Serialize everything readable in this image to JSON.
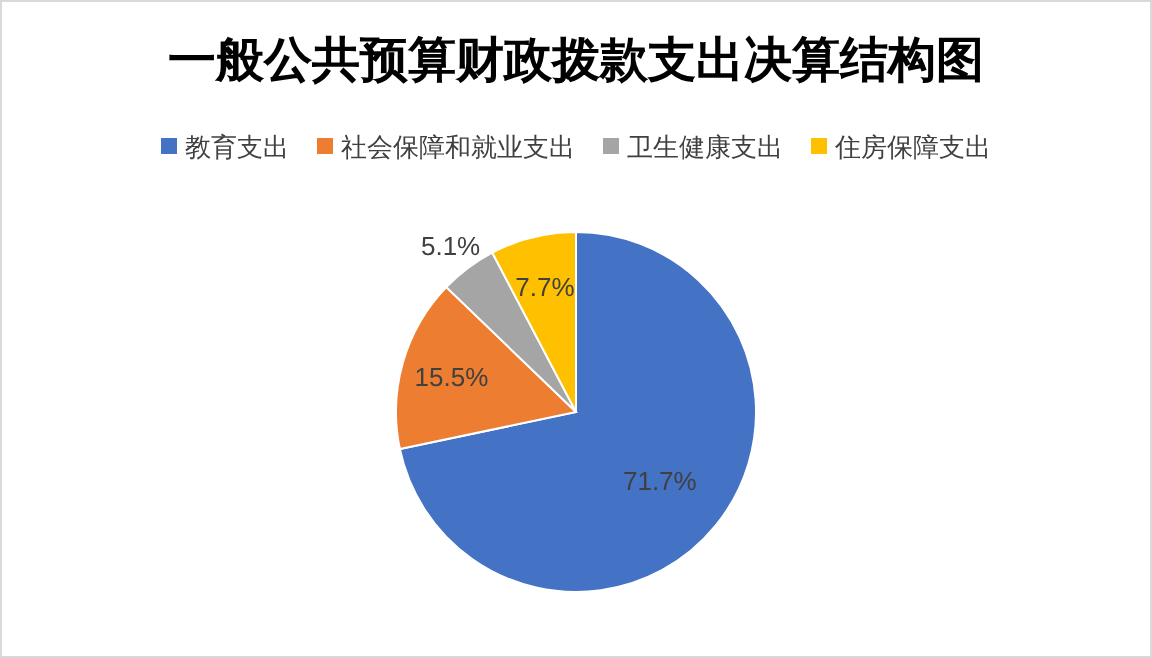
{
  "chart_data": {
    "type": "pie",
    "title": "一般公共预算财政拨款支出决算结构图",
    "categories": [
      "教育支出",
      "社会保障和就业支出",
      "卫生健康支出",
      "住房保障支出"
    ],
    "values": [
      71.7,
      15.5,
      5.1,
      7.7
    ],
    "colors": [
      "#4472c4",
      "#ed7d31",
      "#a5a5a5",
      "#ffc000"
    ],
    "value_labels": [
      "71.7%",
      "15.5%",
      "5.1%",
      "7.7%"
    ],
    "legend": "top"
  }
}
